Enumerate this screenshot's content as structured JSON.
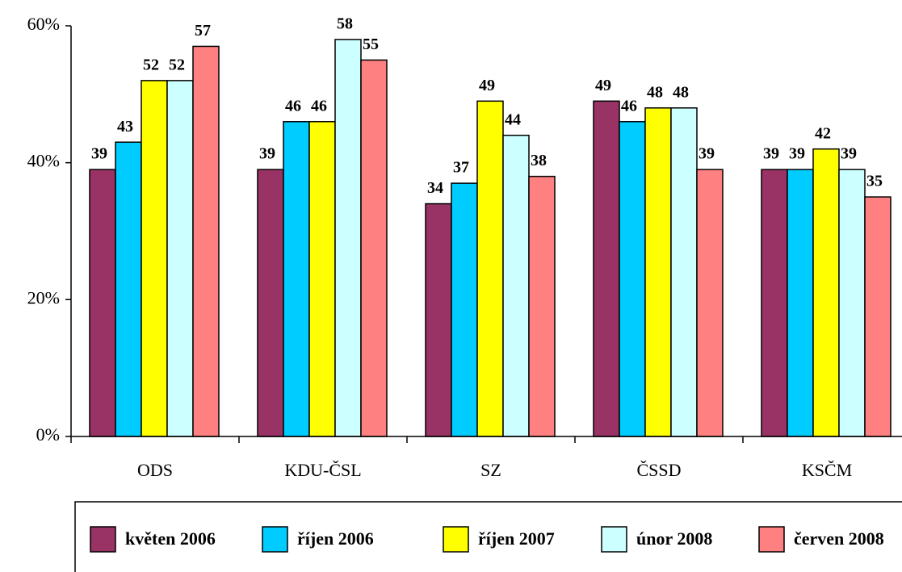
{
  "chart_data": {
    "type": "bar",
    "categories": [
      "ODS",
      "KDU-ČSL",
      "SZ",
      "ČSSD",
      "KSČM"
    ],
    "series": [
      {
        "name": "květen 2006",
        "color": "#993366",
        "values": [
          39,
          39,
          34,
          49,
          39
        ]
      },
      {
        "name": "říjen 2006",
        "color": "#00ccff",
        "values": [
          43,
          46,
          37,
          46,
          39
        ]
      },
      {
        "name": "říjen 2007",
        "color": "#ffff00",
        "values": [
          52,
          46,
          49,
          48,
          42
        ]
      },
      {
        "name": "únor 2008",
        "color": "#ccffff",
        "values": [
          52,
          58,
          44,
          48,
          39
        ]
      },
      {
        "name": "červen 2008",
        "color": "#ff8080",
        "values": [
          57,
          55,
          38,
          39,
          35
        ]
      }
    ],
    "ylim": [
      0,
      60
    ],
    "yticks": [
      {
        "value": 0,
        "label": "0%"
      },
      {
        "value": 20,
        "label": "20%"
      },
      {
        "value": 40,
        "label": "40%"
      },
      {
        "value": 60,
        "label": "60%"
      }
    ],
    "grid": false
  }
}
